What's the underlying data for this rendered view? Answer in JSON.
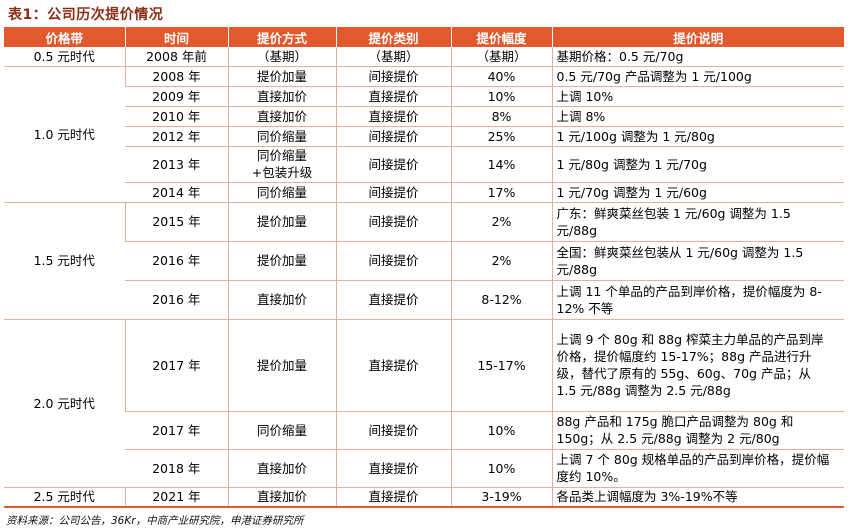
{
  "title": "表1：公司历次提价情况",
  "columns": [
    "价格带",
    "时间",
    "提价方式",
    "提价类别",
    "提价幅度",
    "提价说明"
  ],
  "groups": {
    "g05": "0.5 元时代",
    "g10": "1.0 元时代",
    "g15": "1.5 元时代",
    "g20": "2.0 元时代",
    "g25": "2.5 元时代"
  },
  "rows": [
    {
      "time": "2008 年前",
      "method": "（基期）",
      "category": "（基期）",
      "range": "（基期）",
      "desc": "基期价格：0.5 元/70g"
    },
    {
      "time": "2008 年",
      "method": "提价加量",
      "category": "间接提价",
      "range": "40%",
      "desc": "0.5 元/70g 产品调整为 1 元/100g"
    },
    {
      "time": "2009 年",
      "method": "直接加价",
      "category": "直接提价",
      "range": "10%",
      "desc": "上调 10%"
    },
    {
      "time": "2010 年",
      "method": "直接加价",
      "category": "直接提价",
      "range": "8%",
      "desc": "上调 8%"
    },
    {
      "time": "2012 年",
      "method": "同价缩量",
      "category": "间接提价",
      "range": "25%",
      "desc": "1 元/100g 调整为 1 元/80g"
    },
    {
      "time": "2013 年",
      "method": "同价缩量+包装升级",
      "category": "间接提价",
      "range": "14%",
      "desc": "1 元/80g 调整为 1 元/70g"
    },
    {
      "time": "2014 年",
      "method": "同价缩量",
      "category": "间接提价",
      "range": "17%",
      "desc": "1 元/70g 调整为 1 元/60g"
    },
    {
      "time": "2015 年",
      "method": "提价加量",
      "category": "间接提价",
      "range": "2%",
      "desc": "广东：鲜爽菜丝包装 1 元/60g 调整为 1.5 元/88g"
    },
    {
      "time": "2016 年",
      "method": "提价加量",
      "category": "间接提价",
      "range": "2%",
      "desc": "全国：鲜爽菜丝包装从 1 元/60g 调整为 1.5 元/88g"
    },
    {
      "time": "2016 年",
      "method": "直接加价",
      "category": "直接提价",
      "range": "8-12%",
      "desc": "上调 11 个单品的产品到岸价格，提价幅度为 8-12% 不等"
    },
    {
      "time": "2017 年",
      "method": "提价加量",
      "category": "直接提价",
      "range": "15-17%",
      "desc": "上调 9 个 80g 和 88g 榨菜主力单品的产品到岸价格，提价幅度约 15-17%；88g 产品进行升级，替代了原有的 55g、60g、70g 产品；从 1.5 元/88g 调整为 2.5 元/88g"
    },
    {
      "time": "2017 年",
      "method": "同价缩量",
      "category": "间接提价",
      "range": "10%",
      "desc": "88g 产品和 175g 脆口产品调整为 80g 和 150g；从 2.5 元/88g 调整为 2 元/80g"
    },
    {
      "time": "2018 年",
      "method": "直接加价",
      "category": "直接提价",
      "range": "10%",
      "desc": "上调 7 个 80g 规格单品的产品到岸价格，提价幅度约 10%。"
    },
    {
      "time": "2021 年",
      "method": "直接加价",
      "category": "直接提价",
      "range": "3-19%",
      "desc": "各品类上调幅度为 3%-19%不等"
    }
  ],
  "source": "资料来源：公司公告，36Kr，中商产业研究院，申港证券研究所"
}
